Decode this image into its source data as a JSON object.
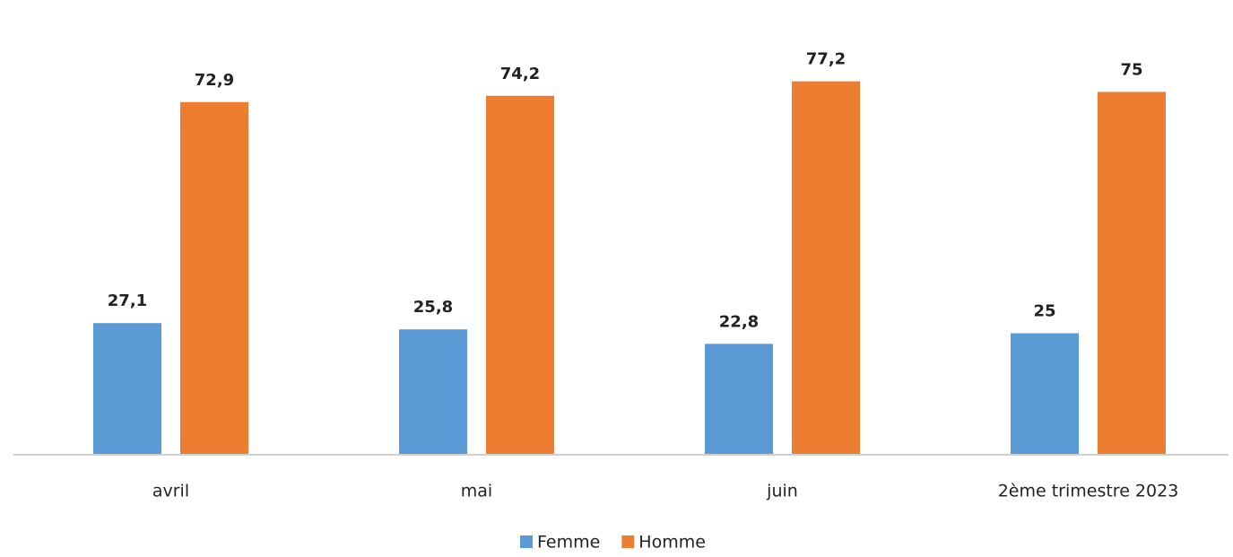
{
  "chart_data": {
    "type": "bar",
    "categories": [
      "avril",
      "mai",
      "juin",
      "2ème trimestre 2023"
    ],
    "series": [
      {
        "name": "Femme",
        "color": "#5b9bd5",
        "values": [
          27.1,
          25.8,
          22.8,
          25
        ],
        "value_labels": [
          "27,1",
          "25,8",
          "22,8",
          "25"
        ]
      },
      {
        "name": "Homme",
        "color": "#ed7d31",
        "values": [
          72.9,
          74.2,
          77.2,
          75
        ],
        "value_labels": [
          "72,9",
          "74,2",
          "77,2",
          "75"
        ]
      }
    ],
    "legend": "bottom"
  }
}
